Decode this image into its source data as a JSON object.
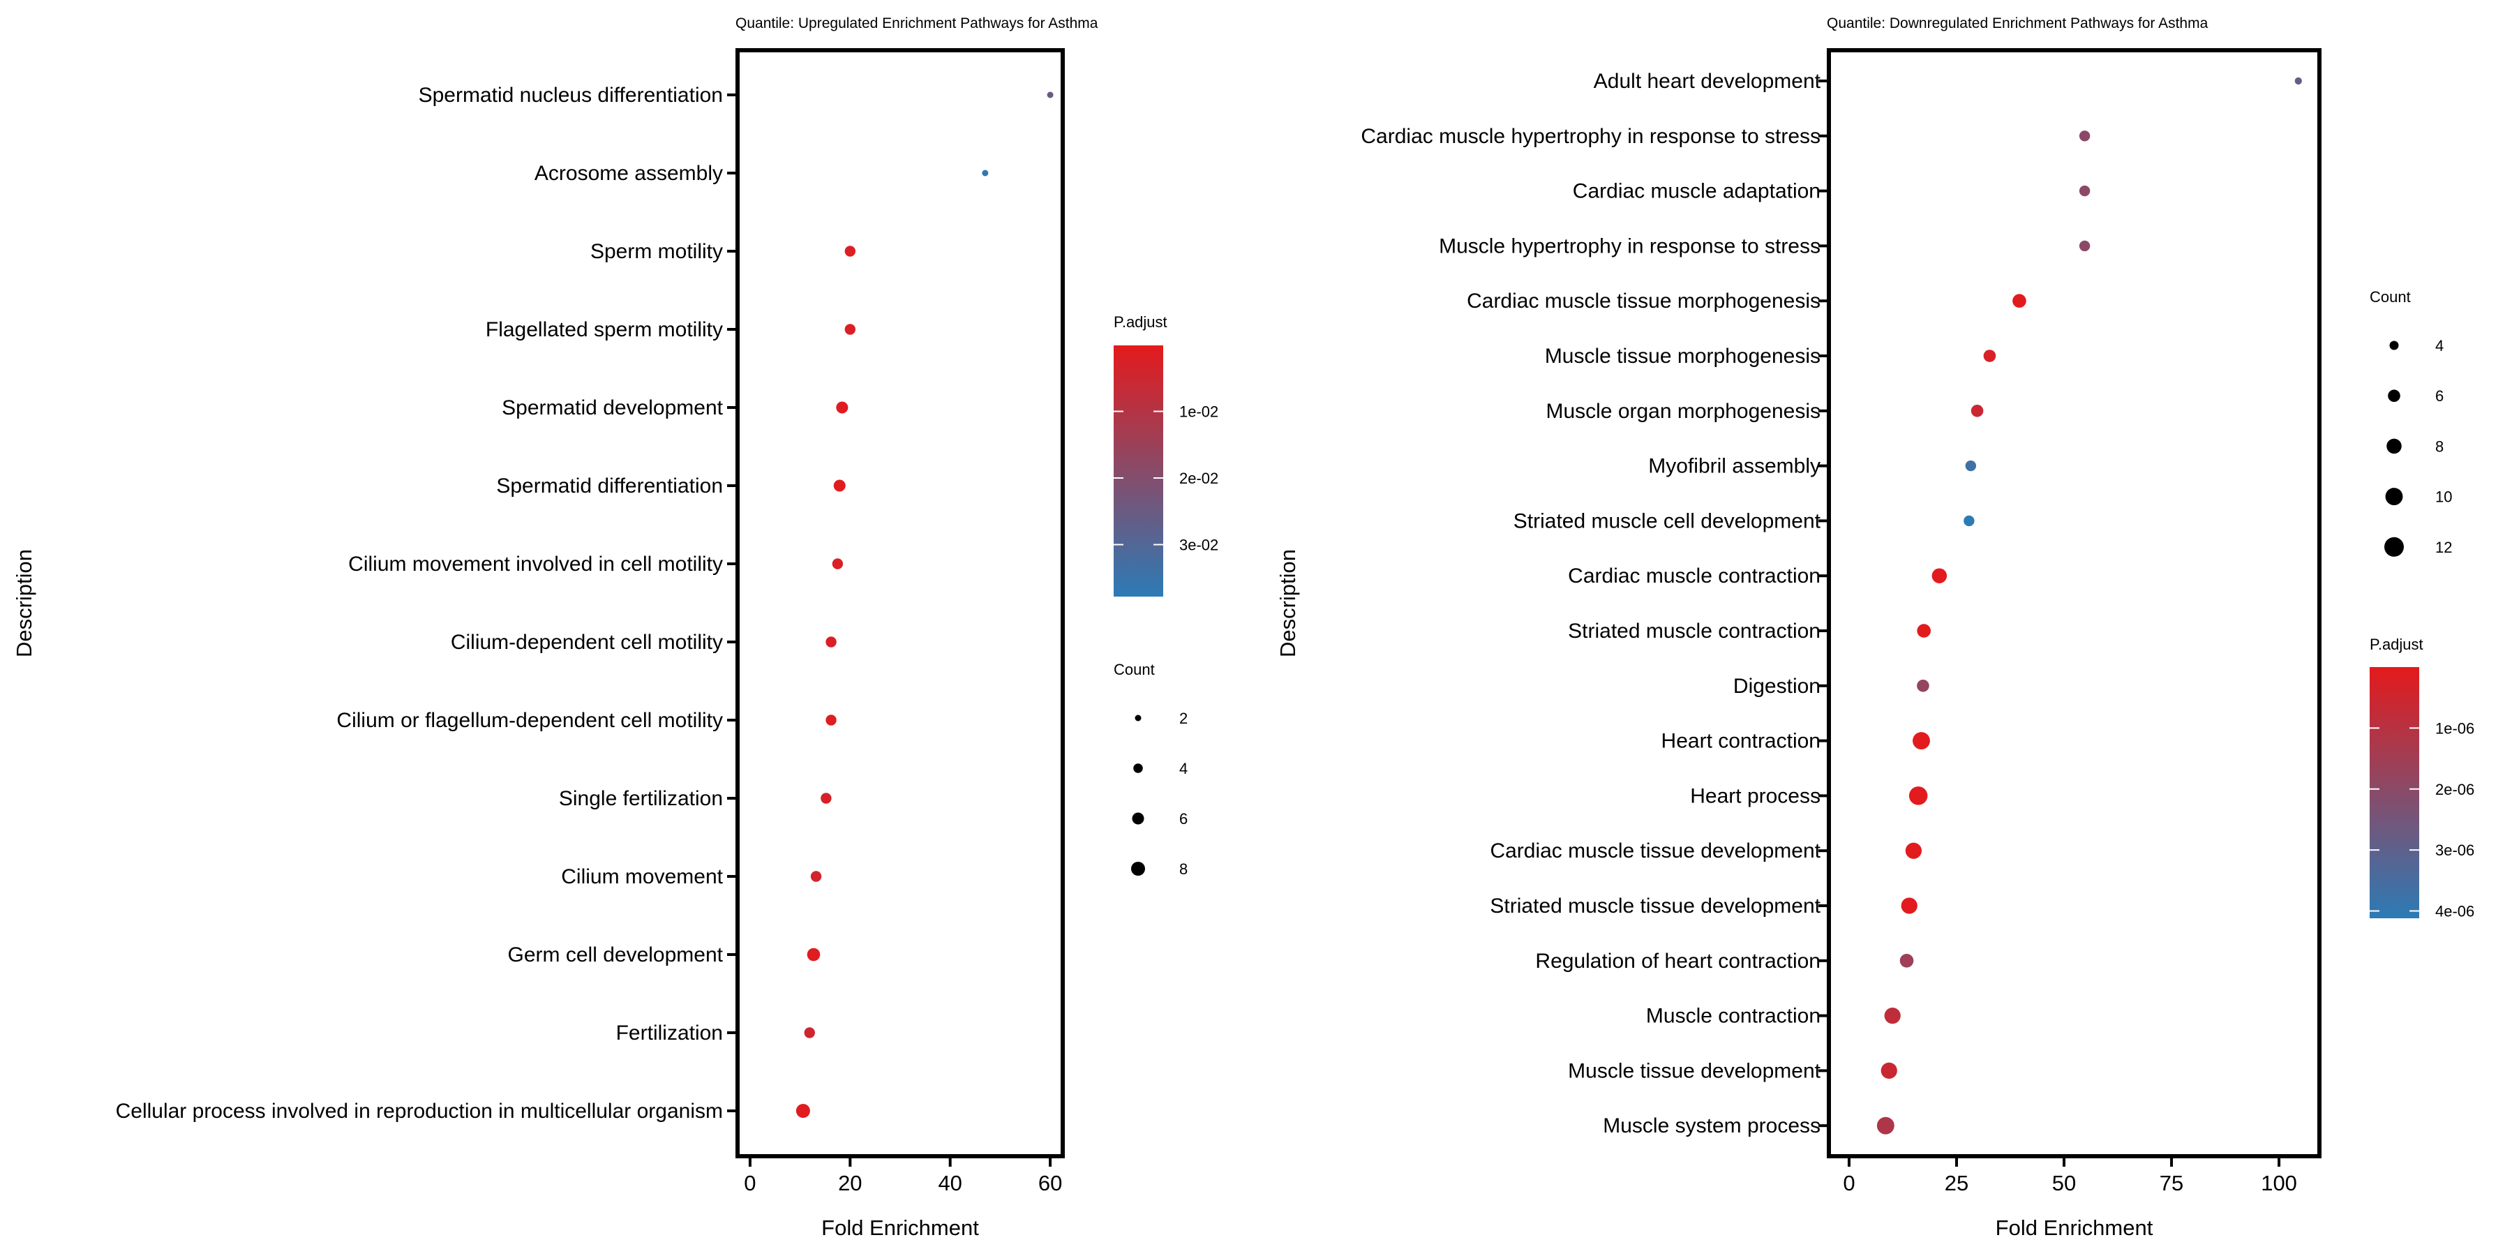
{
  "chart_data": [
    {
      "type": "scatter",
      "title": "Quantile: Upregulated Enrichment Pathways for Asthma",
      "xlabel": "Fold Enrichment",
      "ylabel": "Description",
      "xlim": [
        -2.5,
        62.5
      ],
      "xticks": [
        0,
        20,
        40,
        60
      ],
      "grid": false,
      "categories": [
        "Spermatid nucleus differentiation",
        "Acrosome assembly",
        "Sperm motility",
        "Flagellated sperm motility",
        "Spermatid development",
        "Spermatid differentiation",
        "Cilium movement involved in cell motility",
        "Cilium-dependent cell motility",
        "Cilium or flagellum-dependent cell motility",
        "Single fertilization",
        "Cilium movement",
        "Germ cell development",
        "Fertilization",
        "Cellular process involved in reproduction in multicellular organism"
      ],
      "fold_enrichment": [
        60.0,
        47.0,
        20.0,
        20.0,
        18.4,
        17.9,
        17.5,
        16.2,
        16.2,
        15.2,
        13.2,
        12.7,
        11.9,
        10.6
      ],
      "count": [
        2,
        2,
        5,
        5,
        6,
        6,
        5,
        5,
        5,
        5,
        5,
        7,
        5,
        8
      ],
      "p_adjust": [
        0.025,
        0.036,
        0.002,
        0.002,
        0.001,
        0.001,
        0.002,
        0.002,
        0.002,
        0.003,
        0.004,
        0.001,
        0.005,
        0.001
      ],
      "color_legend": {
        "title": "P.adjust",
        "range": [
          0.0001,
          0.0378
        ],
        "ticks": [
          0.01,
          0.02,
          0.03
        ],
        "tick_labels": [
          "1e-02",
          "2e-02",
          "3e-02"
        ],
        "low_color": "#e41a1c",
        "high_color": "#2c7bb6"
      },
      "size_legend": {
        "title": "Count",
        "values": [
          2,
          4,
          6,
          8
        ],
        "labels": [
          "2",
          "4",
          "6",
          "8"
        ]
      }
    },
    {
      "type": "scatter",
      "title": "Quantile: Downregulated Enrichment Pathways for Asthma",
      "xlabel": "Fold Enrichment",
      "ylabel": "Description",
      "xlim": [
        -4.7,
        109.4
      ],
      "xticks": [
        0,
        25,
        50,
        75,
        100
      ],
      "grid": false,
      "categories": [
        "Adult heart development",
        "Cardiac muscle hypertrophy in response to stress",
        "Cardiac muscle adaptation",
        "Muscle hypertrophy in response to stress",
        "Cardiac muscle tissue morphogenesis",
        "Muscle tissue morphogenesis",
        "Muscle organ morphogenesis",
        "Myofibril assembly",
        "Striated muscle cell development",
        "Cardiac muscle contraction",
        "Striated muscle contraction",
        "Digestion",
        "Heart contraction",
        "Heart process",
        "Cardiac muscle tissue development",
        "Striated muscle tissue development",
        "Regulation of heart contraction",
        "Muscle contraction",
        "Muscle tissue development",
        "Muscle system process"
      ],
      "fold_enrichment": [
        104.5,
        54.8,
        54.8,
        54.8,
        39.6,
        32.7,
        29.8,
        28.3,
        27.9,
        21.0,
        17.4,
        17.2,
        16.8,
        16.1,
        15.0,
        14.0,
        13.4,
        10.1,
        9.3,
        8.5
      ],
      "count": [
        3,
        5,
        5,
        5,
        7,
        6,
        6,
        5,
        5,
        8,
        7,
        6,
        10,
        11,
        9,
        9,
        7,
        9,
        9,
        10
      ],
      "p_adjust": [
        2.9e-06,
        2e-06,
        2e-06,
        2e-06,
        5e-08,
        3e-07,
        6e-07,
        3.7e-06,
        4.1e-06,
        5e-08,
        5e-08,
        1.8e-06,
        5e-08,
        5e-08,
        5e-08,
        5e-08,
        1.6e-06,
        8e-07,
        6e-07,
        1.2e-06
      ],
      "color_legend": {
        "title": "P.adjust",
        "range": [
          0,
          4.12e-06
        ],
        "ticks": [
          1e-06,
          2e-06,
          3e-06,
          4e-06
        ],
        "tick_labels": [
          "1e-06",
          "2e-06",
          "3e-06",
          "4e-06"
        ],
        "low_color": "#e41a1c",
        "high_color": "#2c7bb6"
      },
      "size_legend": {
        "title": "Count",
        "values": [
          4,
          6,
          8,
          10,
          12
        ],
        "labels": [
          "4",
          "6",
          "8",
          "10",
          "12"
        ]
      }
    }
  ]
}
